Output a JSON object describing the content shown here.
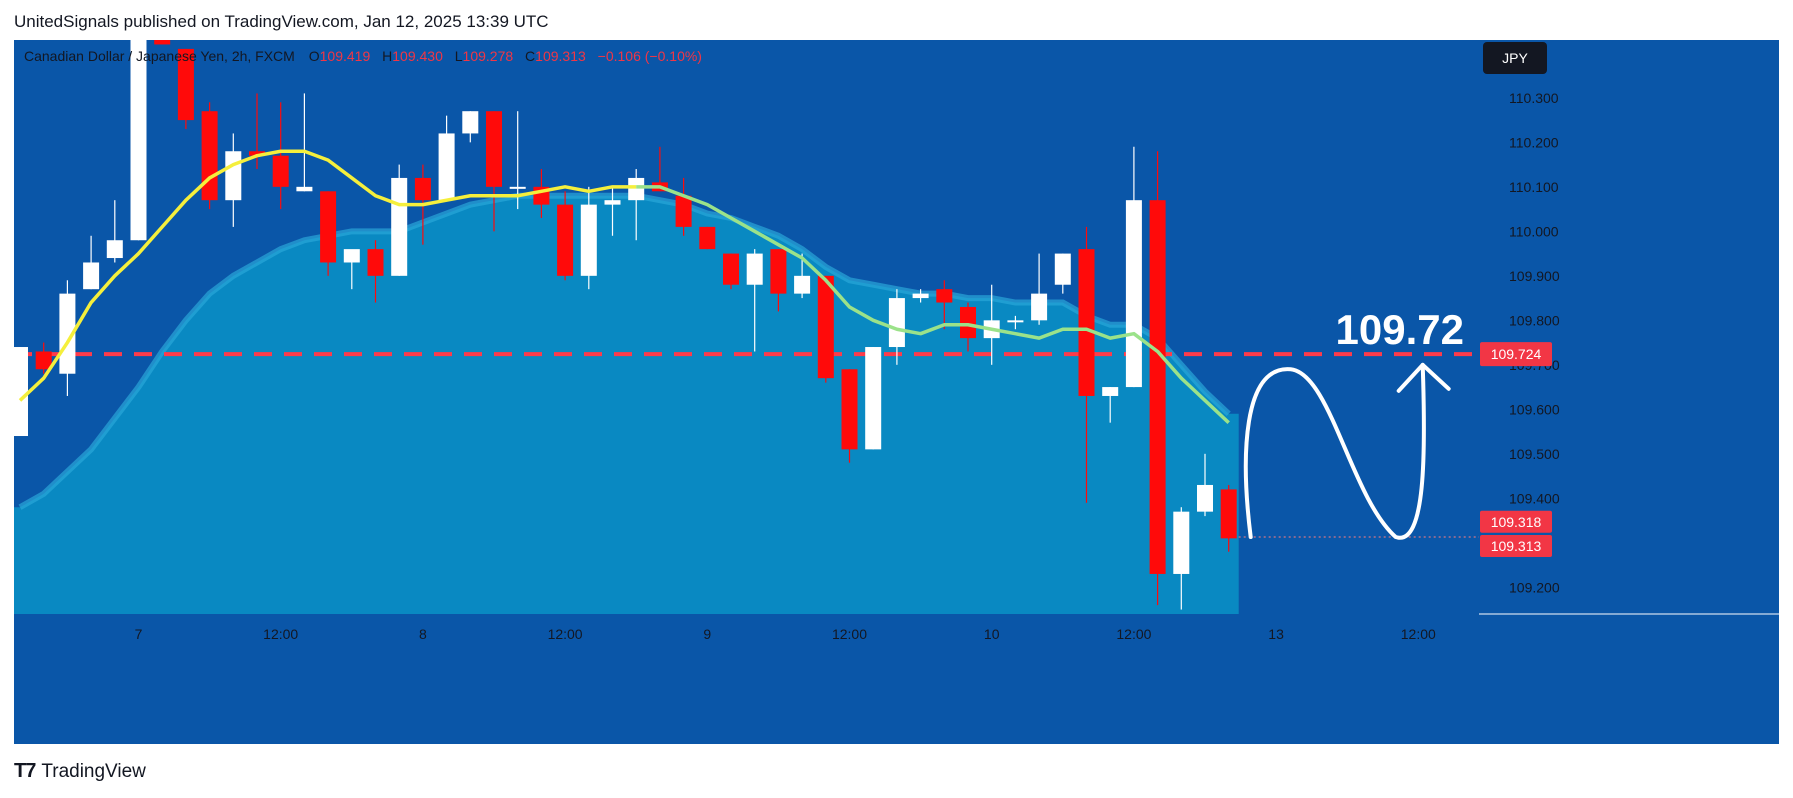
{
  "header": {
    "publisher_line": "UnitedSignals published on TradingView.com, Jan 12, 2025 13:39 UTC"
  },
  "brand": {
    "logo_glyph": "T7",
    "name": "TradingView"
  },
  "colors": {
    "background": "#0a56a8",
    "cloud": "#0a8dc4",
    "cloud_edge": "#2aa6d8",
    "ema_fast": "#f5ef3c",
    "ema_fast_late": "#9be28a",
    "candle_up": "#ffffff",
    "candle_down": "#ff0a0a",
    "target_line": "#ff3b4a",
    "label_red": "#f23645",
    "annotation": "#ffffff"
  },
  "legend": {
    "symbol": "Canadian Dollar / Japanese Yen, 2h, FXCM",
    "o_label": "O",
    "o_value": "109.419",
    "h_label": "H",
    "h_value": "109.430",
    "l_label": "L",
    "l_value": "109.278",
    "c_label": "C",
    "c_value": "109.313",
    "change": "−0.106 (−0.10%)"
  },
  "currency_button": "JPY",
  "target": {
    "value": 109.724,
    "label": "109.724",
    "annotation": "109.72"
  },
  "price_labels": [
    {
      "value": 109.318,
      "label": "109.318"
    },
    {
      "value": 109.313,
      "label": "109.313"
    }
  ],
  "chart_data": {
    "type": "candlestick",
    "symbol": "CADJPY",
    "timeframe": "2h",
    "y_axis": {
      "range": [
        109.14,
        110.43
      ],
      "ticks": [
        110.3,
        110.2,
        110.1,
        110.0,
        109.9,
        109.8,
        109.7,
        109.6,
        109.5,
        109.4,
        109.2
      ],
      "tick_labels": [
        "110.300",
        "110.200",
        "110.100",
        "110.000",
        "109.900",
        "109.800",
        "109.700",
        "109.600",
        "109.500",
        "109.400",
        "109.200"
      ]
    },
    "x_axis": {
      "labels": [
        "7",
        "12:00",
        "8",
        "12:00",
        "9",
        "12:00",
        "10",
        "12:00",
        "13",
        "12:00"
      ],
      "label_bar_index": [
        5,
        11,
        17,
        23,
        29,
        35,
        41,
        47,
        53,
        59
      ]
    },
    "candles": [
      {
        "o": 109.54,
        "h": 109.74,
        "l": 109.54,
        "c": 109.74
      },
      {
        "o": 109.73,
        "h": 109.75,
        "l": 109.68,
        "c": 109.69
      },
      {
        "o": 109.68,
        "h": 109.89,
        "l": 109.63,
        "c": 109.86
      },
      {
        "o": 109.87,
        "h": 109.99,
        "l": 109.87,
        "c": 109.93
      },
      {
        "o": 109.94,
        "h": 110.07,
        "l": 109.93,
        "c": 109.98
      },
      {
        "o": 109.98,
        "h": 110.44,
        "l": 109.98,
        "c": 110.43
      },
      {
        "o": 110.44,
        "h": 110.44,
        "l": 110.42,
        "c": 110.42
      },
      {
        "o": 110.41,
        "h": 110.41,
        "l": 110.23,
        "c": 110.25
      },
      {
        "o": 110.27,
        "h": 110.29,
        "l": 110.05,
        "c": 110.07
      },
      {
        "o": 110.07,
        "h": 110.22,
        "l": 110.01,
        "c": 110.18
      },
      {
        "o": 110.18,
        "h": 110.31,
        "l": 110.14,
        "c": 110.17
      },
      {
        "o": 110.17,
        "h": 110.29,
        "l": 110.05,
        "c": 110.1
      },
      {
        "o": 110.09,
        "h": 110.31,
        "l": 110.09,
        "c": 110.1
      },
      {
        "o": 110.09,
        "h": 110.09,
        "l": 109.9,
        "c": 109.93
      },
      {
        "o": 109.93,
        "h": 109.95,
        "l": 109.87,
        "c": 109.96
      },
      {
        "o": 109.96,
        "h": 109.98,
        "l": 109.84,
        "c": 109.9
      },
      {
        "o": 109.9,
        "h": 110.15,
        "l": 109.9,
        "c": 110.12
      },
      {
        "o": 110.12,
        "h": 110.15,
        "l": 109.97,
        "c": 110.07
      },
      {
        "o": 110.07,
        "h": 110.26,
        "l": 110.07,
        "c": 110.22
      },
      {
        "o": 110.22,
        "h": 110.27,
        "l": 110.2,
        "c": 110.27
      },
      {
        "o": 110.27,
        "h": 110.27,
        "l": 110.0,
        "c": 110.1
      },
      {
        "o": 110.1,
        "h": 110.27,
        "l": 110.05,
        "c": 110.1
      },
      {
        "o": 110.1,
        "h": 110.14,
        "l": 110.03,
        "c": 110.06
      },
      {
        "o": 110.06,
        "h": 110.09,
        "l": 109.89,
        "c": 109.9
      },
      {
        "o": 109.9,
        "h": 110.1,
        "l": 109.87,
        "c": 110.06
      },
      {
        "o": 110.06,
        "h": 110.1,
        "l": 109.99,
        "c": 110.07
      },
      {
        "o": 110.07,
        "h": 110.14,
        "l": 109.98,
        "c": 110.12
      },
      {
        "o": 110.11,
        "h": 110.19,
        "l": 110.09,
        "c": 110.09
      },
      {
        "o": 110.08,
        "h": 110.12,
        "l": 109.99,
        "c": 110.01
      },
      {
        "o": 110.01,
        "h": 110.01,
        "l": 109.96,
        "c": 109.96
      },
      {
        "o": 109.95,
        "h": 109.95,
        "l": 109.87,
        "c": 109.88
      },
      {
        "o": 109.88,
        "h": 109.96,
        "l": 109.73,
        "c": 109.95
      },
      {
        "o": 109.96,
        "h": 109.96,
        "l": 109.82,
        "c": 109.86
      },
      {
        "o": 109.86,
        "h": 109.95,
        "l": 109.85,
        "c": 109.9
      },
      {
        "o": 109.9,
        "h": 109.9,
        "l": 109.66,
        "c": 109.67
      },
      {
        "o": 109.69,
        "h": 109.69,
        "l": 109.48,
        "c": 109.51
      },
      {
        "o": 109.51,
        "h": 109.74,
        "l": 109.51,
        "c": 109.74
      },
      {
        "o": 109.74,
        "h": 109.87,
        "l": 109.7,
        "c": 109.85
      },
      {
        "o": 109.85,
        "h": 109.87,
        "l": 109.84,
        "c": 109.86
      },
      {
        "o": 109.87,
        "h": 109.89,
        "l": 109.78,
        "c": 109.84
      },
      {
        "o": 109.83,
        "h": 109.84,
        "l": 109.73,
        "c": 109.76
      },
      {
        "o": 109.76,
        "h": 109.88,
        "l": 109.7,
        "c": 109.8
      },
      {
        "o": 109.8,
        "h": 109.81,
        "l": 109.78,
        "c": 109.8
      },
      {
        "o": 109.8,
        "h": 109.95,
        "l": 109.79,
        "c": 109.86
      },
      {
        "o": 109.88,
        "h": 109.95,
        "l": 109.86,
        "c": 109.95
      },
      {
        "o": 109.96,
        "h": 110.01,
        "l": 109.39,
        "c": 109.63
      },
      {
        "o": 109.63,
        "h": 109.65,
        "l": 109.57,
        "c": 109.65
      },
      {
        "o": 109.65,
        "h": 110.19,
        "l": 109.65,
        "c": 110.07
      },
      {
        "o": 110.07,
        "h": 110.18,
        "l": 109.16,
        "c": 109.23
      },
      {
        "o": 109.23,
        "h": 109.38,
        "l": 109.15,
        "c": 109.37
      },
      {
        "o": 109.37,
        "h": 109.5,
        "l": 109.36,
        "c": 109.43
      },
      {
        "o": 109.42,
        "h": 109.43,
        "l": 109.28,
        "c": 109.31
      }
    ],
    "ema": [
      109.62,
      109.67,
      109.75,
      109.84,
      109.9,
      109.95,
      110.01,
      110.07,
      110.12,
      110.15,
      110.17,
      110.18,
      110.18,
      110.16,
      110.12,
      110.08,
      110.06,
      110.06,
      110.07,
      110.08,
      110.08,
      110.08,
      110.09,
      110.1,
      110.09,
      110.1,
      110.1,
      110.1,
      110.08,
      110.06,
      110.03,
      110.0,
      109.97,
      109.94,
      109.89,
      109.83,
      109.8,
      109.78,
      109.77,
      109.79,
      109.79,
      109.78,
      109.77,
      109.76,
      109.78,
      109.78,
      109.76,
      109.77,
      109.73,
      109.67,
      109.62,
      109.57
    ],
    "cloud_top": [
      109.38,
      109.41,
      109.46,
      109.51,
      109.58,
      109.65,
      109.73,
      109.8,
      109.86,
      109.9,
      109.93,
      109.96,
      109.98,
      109.99,
      110.0,
      110.0,
      110.0,
      110.02,
      110.04,
      110.06,
      110.07,
      110.08,
      110.08,
      110.08,
      110.08,
      110.08,
      110.08,
      110.07,
      110.06,
      110.04,
      110.03,
      110.01,
      109.99,
      109.96,
      109.92,
      109.89,
      109.88,
      109.87,
      109.86,
      109.86,
      109.85,
      109.85,
      109.84,
      109.84,
      109.84,
      109.81,
      109.79,
      109.79,
      109.76,
      109.7,
      109.64,
      109.59
    ]
  }
}
